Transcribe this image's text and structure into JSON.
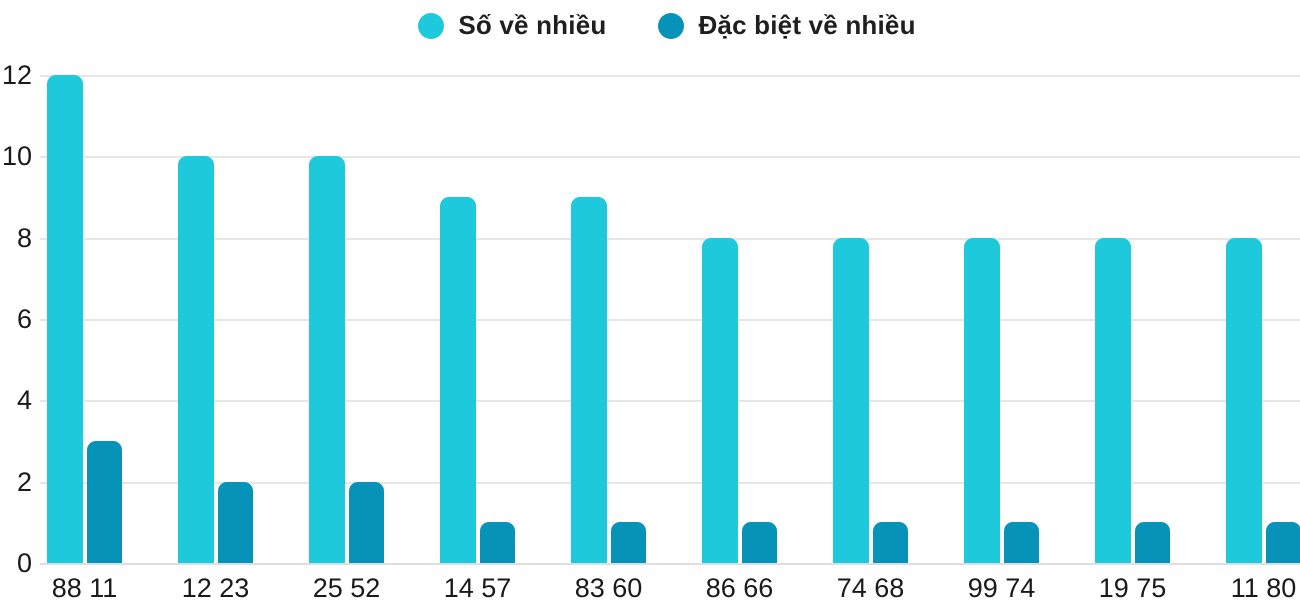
{
  "chart_data": {
    "type": "bar",
    "title": "",
    "xlabel": "",
    "ylabel": "",
    "categories": [
      "88 11",
      "12 23",
      "25 52",
      "14 57",
      "83 60",
      "86 66",
      "74 68",
      "99 74",
      "19 75",
      "11 80"
    ],
    "series": [
      {
        "name": "Số về nhiều",
        "color": "#1EC9DC",
        "values": [
          12,
          10,
          10,
          9,
          9,
          8,
          8,
          8,
          8,
          8
        ]
      },
      {
        "name": "Đặc biệt về nhiều",
        "color": "#0793B8",
        "values": [
          3,
          2,
          2,
          1,
          1,
          1,
          1,
          1,
          1,
          1
        ]
      }
    ],
    "ylim": [
      0,
      12
    ],
    "yticks": [
      0,
      2,
      4,
      6,
      8,
      10,
      12
    ],
    "grid": true,
    "legend_position": "top-center",
    "colors": {
      "grid": "#E6E6E6",
      "axis_text": "#1A1A1A",
      "background": "#FFFFFF"
    }
  }
}
